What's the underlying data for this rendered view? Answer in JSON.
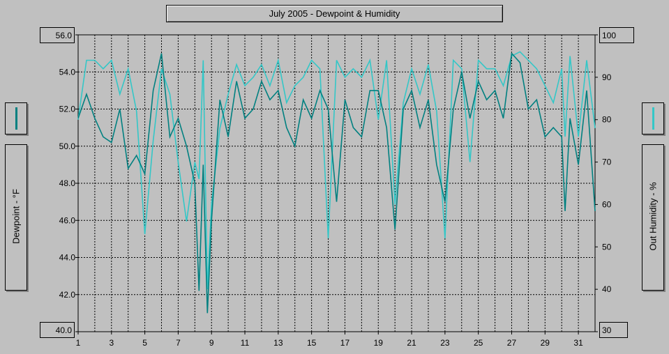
{
  "chart_data": {
    "type": "line",
    "title": "July 2005 - Dewpoint & Humidity",
    "ylabel_left": "Dewpoint - °F",
    "ylabel_right": "Out Humidity - %",
    "ylim_left": [
      40,
      56
    ],
    "ylim_right": [
      30,
      100
    ],
    "y_ticks_left": [
      "56.0",
      "54.0",
      "52.0",
      "50.0",
      "48.0",
      "46.0",
      "44.0",
      "42.0",
      "40.0"
    ],
    "y_ticks_right": [
      "100",
      "90",
      "80",
      "70",
      "60",
      "50",
      "40",
      "30"
    ],
    "x_ticks": [
      "1",
      "3",
      "5",
      "7",
      "9",
      "11",
      "13",
      "15",
      "17",
      "19",
      "21",
      "23",
      "25",
      "27",
      "29",
      "31"
    ],
    "x_range": [
      1,
      32
    ],
    "grid": true,
    "series": [
      {
        "axis": "left",
        "color": "#008080",
        "x": [
          1,
          1.5,
          2,
          2.5,
          3,
          3.5,
          4,
          4.5,
          5,
          5.5,
          6,
          6.5,
          7,
          7.5,
          8,
          8.25,
          8.5,
          8.75,
          9,
          9.5,
          10,
          10.5,
          11,
          11.5,
          12,
          12.5,
          13,
          13.5,
          14,
          14.5,
          15,
          15.5,
          16,
          16.5,
          17,
          17.5,
          18,
          18.5,
          19,
          19.5,
          20,
          20.5,
          21,
          21.5,
          22,
          22.5,
          23,
          23.5,
          24,
          24.5,
          25,
          25.5,
          26,
          26.5,
          27,
          27.5,
          28,
          28.5,
          29,
          29.5,
          30,
          30.2,
          30.5,
          31,
          31.5,
          32
        ],
        "values": [
          51.5,
          52.8,
          51.5,
          50.5,
          50.2,
          52.0,
          48.8,
          49.5,
          48.5,
          53.0,
          55.0,
          50.5,
          51.5,
          50.0,
          48.0,
          42.2,
          49.0,
          41.0,
          46.0,
          52.5,
          50.5,
          53.5,
          51.5,
          52.0,
          53.5,
          52.5,
          53.0,
          51.0,
          50.0,
          52.5,
          51.5,
          53.0,
          52.0,
          47.0,
          52.5,
          51.0,
          50.5,
          53.0,
          53.0,
          51.0,
          45.5,
          52.0,
          53.0,
          51.0,
          52.5,
          49.0,
          47.0,
          52.0,
          54.0,
          51.5,
          53.5,
          52.5,
          53.0,
          51.5,
          55.0,
          54.5,
          52.0,
          52.5,
          50.5,
          51.0,
          50.5,
          46.5,
          51.5,
          49.0,
          53.0,
          46.5
        ]
      },
      {
        "axis": "right",
        "color": "#33c7c7",
        "x": [
          1,
          1.5,
          2,
          2.5,
          3,
          3.5,
          4,
          4.5,
          5,
          5.5,
          6,
          6.5,
          7,
          7.5,
          8,
          8.25,
          8.5,
          8.75,
          9,
          9.5,
          10,
          10.5,
          11,
          11.5,
          12,
          12.5,
          13,
          13.5,
          14,
          14.5,
          15,
          15.5,
          16,
          16.5,
          17,
          17.5,
          18,
          18.5,
          19,
          19.5,
          20,
          20.5,
          21,
          21.5,
          22,
          22.5,
          23,
          23.5,
          24,
          24.5,
          25,
          25.5,
          26,
          26.5,
          27,
          27.5,
          28,
          28.5,
          29,
          29.5,
          30,
          30.2,
          30.5,
          31,
          31.5,
          32
        ],
        "values": [
          80,
          94,
          94,
          92,
          94,
          86,
          92,
          82,
          53,
          75,
          92,
          86,
          70,
          56,
          70,
          66,
          94,
          40,
          60,
          78,
          86,
          93,
          88,
          90,
          93,
          88,
          94,
          84,
          88,
          90,
          94,
          92,
          52,
          94,
          90,
          92,
          90,
          94,
          80,
          94,
          60,
          84,
          92,
          86,
          93,
          82,
          52,
          94,
          92,
          70,
          94,
          92,
          92,
          88,
          95,
          96,
          94,
          92,
          88,
          84,
          92,
          76,
          95,
          76,
          94,
          78
        ]
      }
    ]
  },
  "legend_left": {
    "color": "#008080"
  },
  "legend_right": {
    "color": "#33c7c7"
  }
}
